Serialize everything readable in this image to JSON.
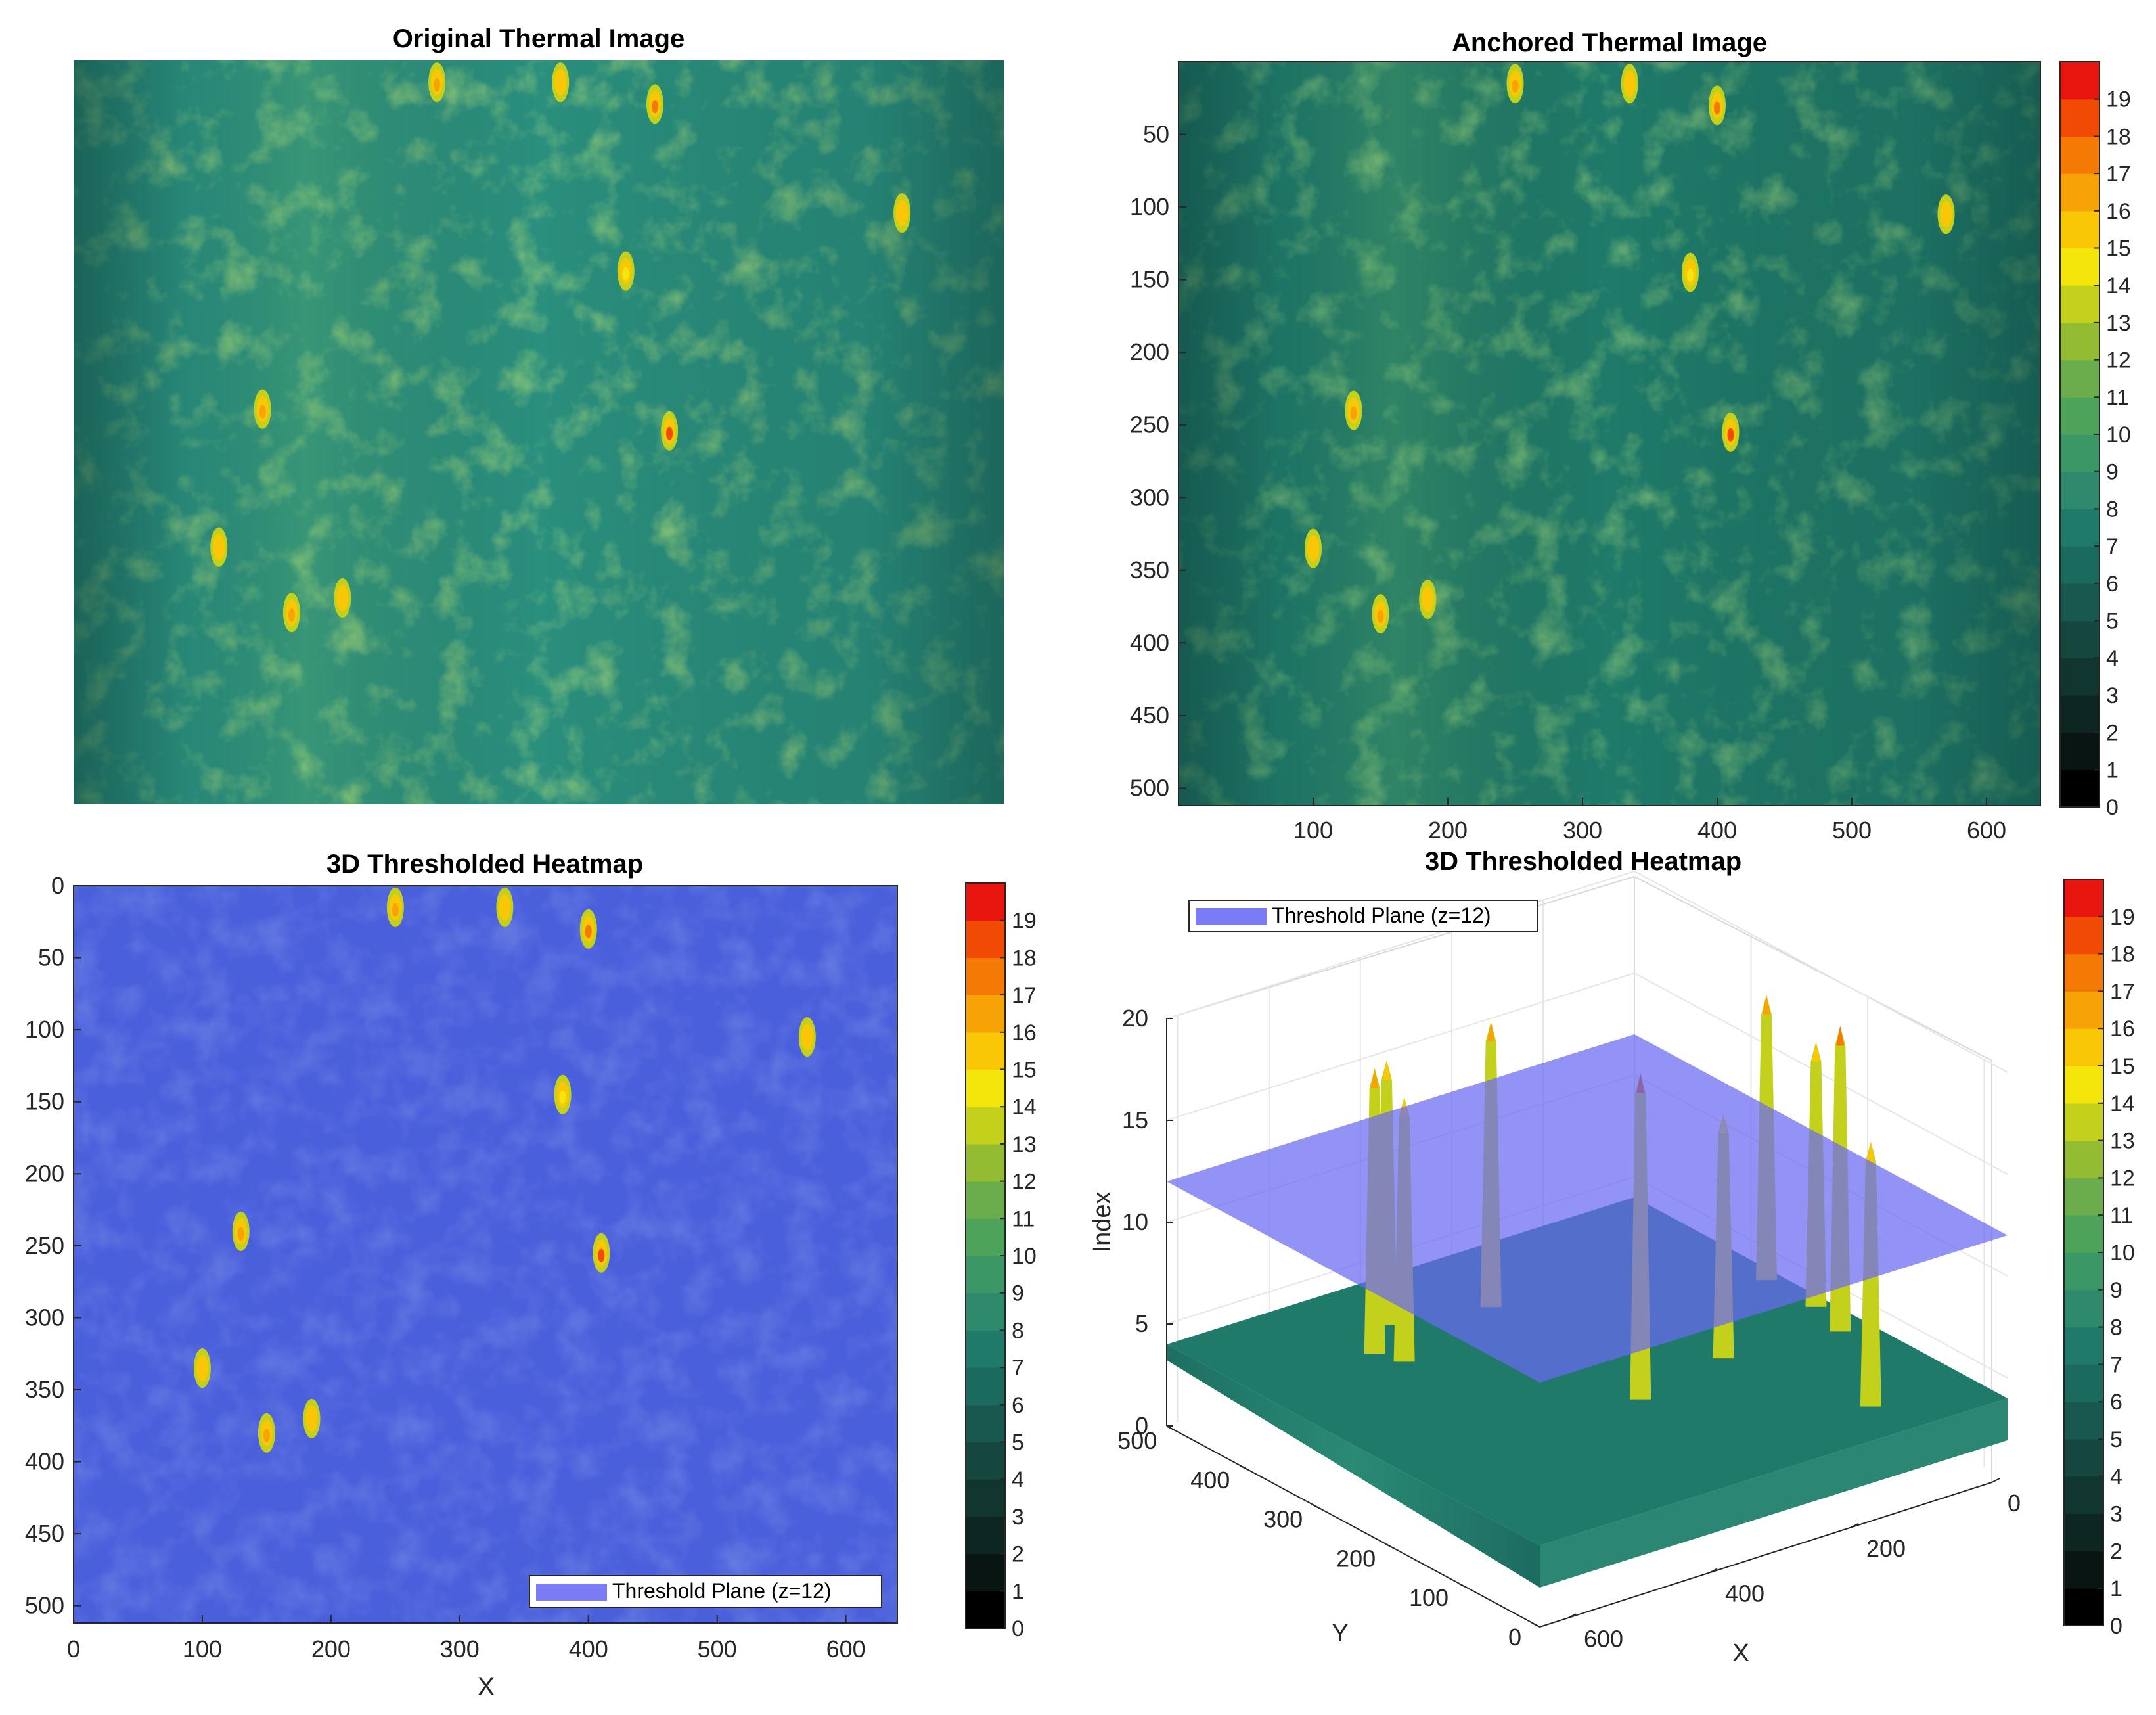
{
  "colorbar": {
    "colors": [
      "#000000",
      "#081512",
      "#0e2622",
      "#113630",
      "#15473f",
      "#18584f",
      "#1a6a5d",
      "#1f7a69",
      "#2f8a6d",
      "#3c9766",
      "#4ea35b",
      "#6bad4c",
      "#93bc33",
      "#c4d11c",
      "#f4e60a",
      "#f9c706",
      "#f7a306",
      "#f47a05",
      "#f04a04",
      "#e8160e"
    ],
    "ticks": [
      "0",
      "1",
      "2",
      "3",
      "4",
      "5",
      "6",
      "7",
      "8",
      "9",
      "10",
      "11",
      "12",
      "13",
      "14",
      "15",
      "16",
      "17",
      "18",
      "19"
    ]
  },
  "panel_original": {
    "title": "Original Thermal Image"
  },
  "panel_anchored": {
    "title": "Anchored Thermal Image",
    "y_ticks": [
      "50",
      "100",
      "150",
      "200",
      "250",
      "300",
      "350",
      "400",
      "450",
      "500"
    ],
    "x_ticks": [
      "100",
      "200",
      "300",
      "400",
      "500",
      "600"
    ]
  },
  "panel_heatmap2d": {
    "title": "3D Thresholded Heatmap",
    "y_ticks": [
      "0",
      "50",
      "100",
      "150",
      "200",
      "250",
      "300",
      "350",
      "400",
      "450",
      "500"
    ],
    "x_ticks": [
      "0",
      "100",
      "200",
      "300",
      "400",
      "500",
      "600"
    ],
    "xlabel": "X",
    "legend": "Threshold Plane (z=12)"
  },
  "panel_surface3d": {
    "title": "3D Thresholded Heatmap",
    "zlabel": "Index",
    "xlabel": "X",
    "ylabel": "Y",
    "z_ticks": [
      "0",
      "5",
      "10",
      "15",
      "20"
    ],
    "y_ticks": [
      "500",
      "400",
      "300",
      "200",
      "100",
      "0"
    ],
    "x_ticks": [
      "0",
      "200",
      "400",
      "600"
    ],
    "legend": "Threshold Plane (z=12)"
  },
  "chart_data": [
    {
      "type": "heatmap",
      "title": "Original Thermal Image",
      "xlabel": "",
      "ylabel": "",
      "xlim": [
        0,
        640
      ],
      "ylim": [
        0,
        512
      ],
      "background_index": 6,
      "hot_spots": [
        {
          "x": 250,
          "y": 15,
          "peak": 16
        },
        {
          "x": 335,
          "y": 15,
          "peak": 15
        },
        {
          "x": 400,
          "y": 30,
          "peak": 17
        },
        {
          "x": 570,
          "y": 105,
          "peak": 15
        },
        {
          "x": 380,
          "y": 145,
          "peak": 14
        },
        {
          "x": 130,
          "y": 240,
          "peak": 16
        },
        {
          "x": 410,
          "y": 255,
          "peak": 18
        },
        {
          "x": 100,
          "y": 335,
          "peak": 15
        },
        {
          "x": 150,
          "y": 380,
          "peak": 16
        },
        {
          "x": 185,
          "y": 370,
          "peak": 15
        }
      ]
    },
    {
      "type": "heatmap",
      "title": "Anchored Thermal Image",
      "xlim": [
        0,
        640
      ],
      "ylim": [
        0,
        512
      ],
      "colorbar_range": [
        0,
        19
      ],
      "background_index": 6
    },
    {
      "type": "heatmap",
      "title": "3D Thresholded Heatmap",
      "xlabel": "X",
      "ylabel": "",
      "xlim": [
        0,
        640
      ],
      "ylim": [
        0,
        512
      ],
      "threshold": 12,
      "colorbar_range": [
        0,
        19
      ]
    },
    {
      "type": "surface",
      "title": "3D Thresholded Heatmap",
      "xlabel": "X",
      "ylabel": "Y",
      "zlabel": "Index",
      "xlim": [
        0,
        640
      ],
      "ylim": [
        0,
        512
      ],
      "zlim": [
        0,
        20
      ],
      "threshold_plane_z": 12,
      "colorbar_range": [
        0,
        19
      ]
    }
  ]
}
